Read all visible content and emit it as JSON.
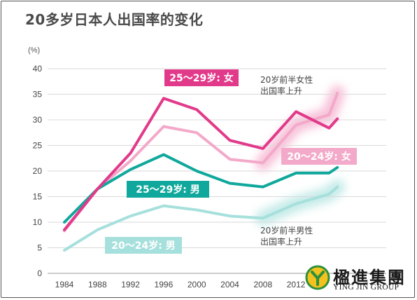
{
  "title": "20多岁日本人出国率的变化",
  "unit": "(%)",
  "notes": {
    "female_trend": [
      "20岁前半女性",
      "出国率上升"
    ],
    "male_trend": [
      "20岁前半男性",
      "出国率上升"
    ]
  },
  "logo": {
    "chinese": "楹進集團",
    "english": "YING JIN GROUP",
    "mark": "Y"
  },
  "chart_data": {
    "type": "line",
    "title": "20多岁日本人出国率的变化",
    "xlabel": "",
    "ylabel": "(%)",
    "ylim": [
      0,
      40
    ],
    "yticks": [
      0,
      5,
      10,
      15,
      20,
      25,
      30,
      35,
      40
    ],
    "grid": true,
    "x": [
      1984,
      1988,
      1992,
      1996,
      2000,
      2004,
      2008,
      2012,
      2016,
      2017
    ],
    "x_tick_labels": [
      "1984",
      "1988",
      "1992",
      "1996",
      "2000",
      "2004",
      "2008",
      "2012"
    ],
    "series": [
      {
        "name": "25～29岁: 女",
        "color": "#e23a8a",
        "values": [
          8.5,
          16.5,
          23.5,
          34.2,
          32.0,
          26.0,
          24.4,
          31.6,
          28.4,
          30.2
        ]
      },
      {
        "name": "20～24岁: 女",
        "color": "#f3a9c9",
        "values": [
          8.3,
          16.5,
          22.0,
          28.7,
          27.5,
          22.3,
          21.6,
          29.0,
          31.0,
          35.2
        ]
      },
      {
        "name": "25～29岁: 男",
        "color": "#10a89c",
        "values": [
          10.0,
          16.5,
          20.3,
          23.2,
          20.0,
          17.6,
          16.9,
          19.6,
          19.6,
          20.7
        ]
      },
      {
        "name": "20～24岁: 男",
        "color": "#a6e0dc",
        "values": [
          4.5,
          8.5,
          11.2,
          13.2,
          12.4,
          11.2,
          10.8,
          13.6,
          15.5,
          16.9
        ]
      }
    ]
  }
}
